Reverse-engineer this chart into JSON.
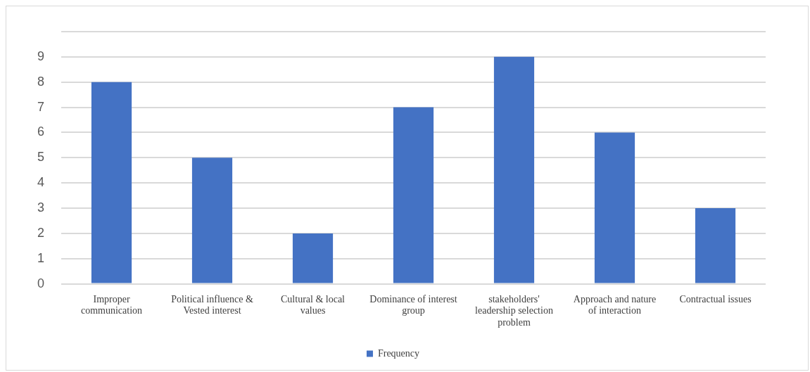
{
  "chart_data": {
    "type": "bar",
    "categories": [
      "Improper communication",
      "Political influence & Vested interest",
      "Cultural & local values",
      "Dominance of interest group",
      "stakeholders' leadership selection problem",
      "Approach and nature of interaction",
      "Contractual issues"
    ],
    "series": [
      {
        "name": "Frequency",
        "color": "#4472c4",
        "values": [
          8,
          5,
          2,
          7,
          9,
          6,
          3
        ]
      }
    ],
    "ylim": [
      0,
      10
    ],
    "yticks": [
      0,
      1,
      2,
      3,
      4,
      5,
      6,
      7,
      8,
      9,
      {
        "value": 10,
        "label": null
      }
    ],
    "grid": "y",
    "legend": "bottom"
  }
}
